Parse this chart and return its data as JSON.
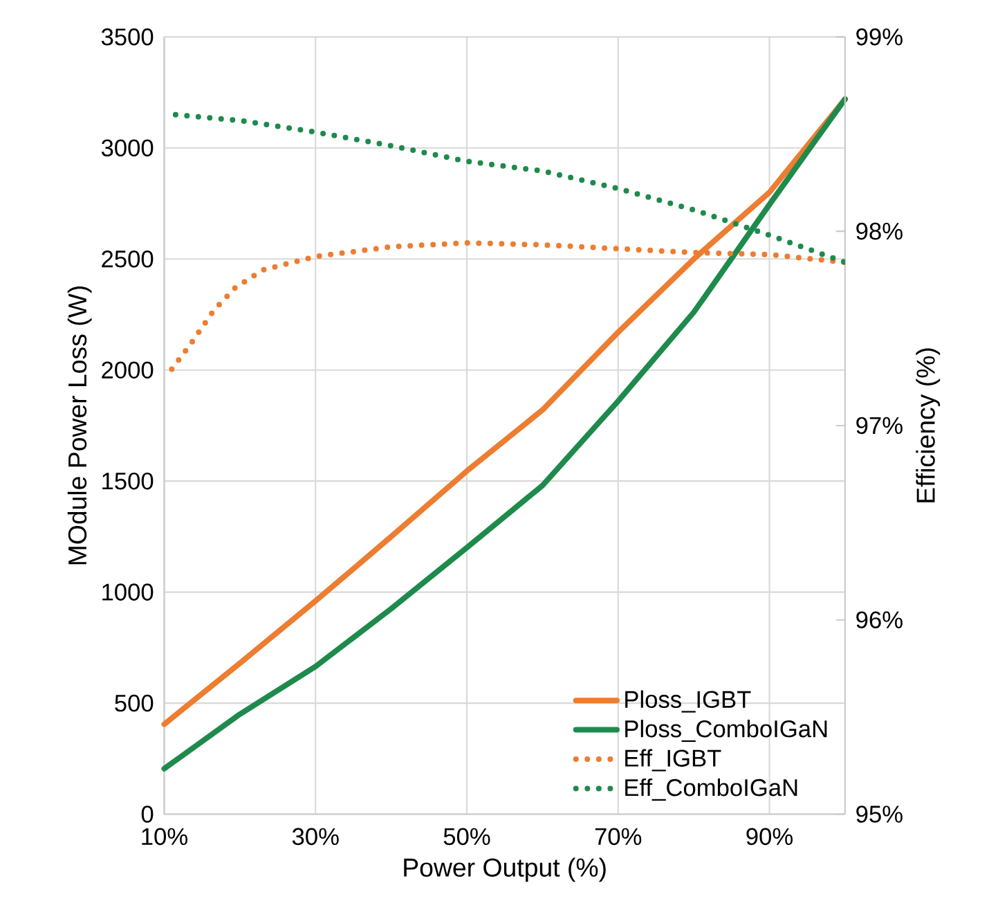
{
  "chart_data": {
    "type": "line",
    "xlabel": "Power Output (%)",
    "ylabel": "MOdule Power Loss (W)",
    "y2label": "Efficiency (%)",
    "xlim": [
      10,
      100
    ],
    "xticks": [
      {
        "value": 10,
        "label": "10%"
      },
      {
        "value": 30,
        "label": "30%"
      },
      {
        "value": 50,
        "label": "50%"
      },
      {
        "value": 70,
        "label": "70%"
      },
      {
        "value": 90,
        "label": "90%"
      }
    ],
    "ylim": [
      0,
      3500
    ],
    "yticks": [
      0,
      500,
      1000,
      1500,
      2000,
      2500,
      3000,
      3500
    ],
    "y2lim": [
      95,
      99
    ],
    "y2ticks": [
      {
        "value": 95,
        "label": "95%"
      },
      {
        "value": 96,
        "label": "96%"
      },
      {
        "value": 97,
        "label": "97%"
      },
      {
        "value": 98,
        "label": "98%"
      },
      {
        "value": 99,
        "label": "99%"
      }
    ],
    "grid": true,
    "legend": "bottom right",
    "marker": "none",
    "series": [
      {
        "name": "Ploss_IGBT",
        "color": "#ed7d31",
        "line_style": "solid",
        "x": [
          10,
          20,
          30,
          40,
          50,
          60,
          70,
          80,
          90,
          100
        ],
        "values": [
          405,
          680,
          960,
          1250,
          1545,
          1820,
          2170,
          2500,
          2800,
          3220
        ]
      },
      {
        "name": "Ploss_ComboIGaN",
        "color": "#1e8a4c",
        "line_style": "solid",
        "x": [
          10,
          20,
          30,
          40,
          50,
          60,
          70,
          80,
          90,
          100
        ],
        "values": [
          205,
          450,
          665,
          925,
          1200,
          1480,
          1860,
          2260,
          2745,
          3220
        ]
      },
      {
        "name": "Eff_IGBT",
        "color": "#ed7d31",
        "line_style": "dotted",
        "axis": "y2",
        "x": [
          11,
          13.5,
          16.5,
          19.4,
          23,
          30,
          40,
          50,
          60,
          70,
          80,
          90,
          100
        ],
        "values": [
          97.29,
          97.42,
          97.59,
          97.71,
          97.8,
          97.87,
          97.92,
          97.94,
          97.93,
          97.91,
          97.89,
          97.88,
          97.84
        ]
      },
      {
        "name": "Eff_ComboIGaN",
        "color": "#1e8a4c",
        "line_style": "dotted",
        "axis": "y2",
        "x": [
          11.5,
          20,
          30,
          40,
          50,
          60,
          70,
          80,
          90,
          100
        ],
        "values": [
          98.6,
          98.57,
          98.51,
          98.44,
          98.36,
          98.31,
          98.22,
          98.11,
          97.98,
          97.84
        ]
      }
    ]
  }
}
